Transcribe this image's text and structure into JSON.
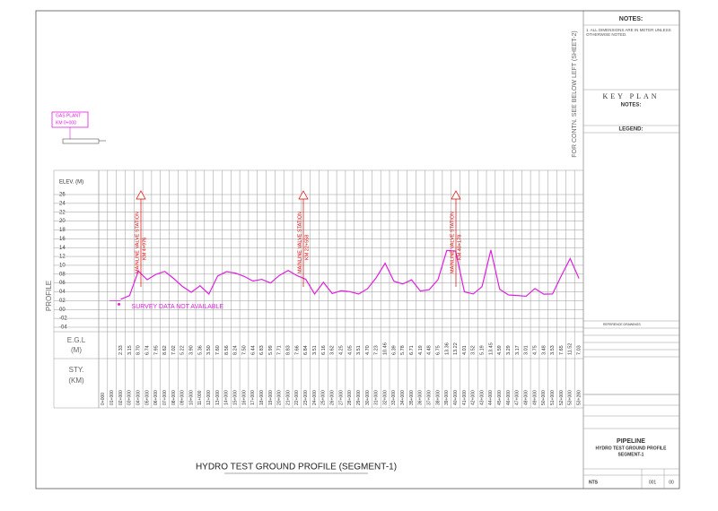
{
  "chart_data": {
    "type": "line",
    "title": "HYDRO TEST GROUND PROFILE (SEGMENT-1)",
    "ylabel": "PROFILE",
    "elev_label": "ELEV. (M)",
    "color": "#e020e0",
    "categories": [
      "0+000",
      "01+000",
      "02+000",
      "03+000",
      "04+000",
      "05+000",
      "06+000",
      "07+000",
      "08+000",
      "09+000",
      "10+000",
      "11+000",
      "12+000",
      "13+000",
      "14+000",
      "15+000",
      "16+000",
      "17+000",
      "18+000",
      "19+000",
      "20+000",
      "21+000",
      "22+000",
      "23+000",
      "24+000",
      "25+000",
      "26+000",
      "27+000",
      "28+000",
      "29+000",
      "30+000",
      "31+000",
      "32+000",
      "33+000",
      "34+000",
      "35+000",
      "36+000",
      "37+000",
      "38+000",
      "39+000",
      "40+000",
      "41+000",
      "42+000",
      "43+000",
      "44+000",
      "45+000",
      "46+000",
      "47+000",
      "48+000",
      "49+000",
      "50+000",
      "51+000",
      "52+000",
      "53+000",
      "53+280"
    ],
    "values": [
      null,
      null,
      2.33,
      3.15,
      8.7,
      6.74,
      7.95,
      8.62,
      7.02,
      5.22,
      3.9,
      5.36,
      3.5,
      7.6,
      8.56,
      8.24,
      7.5,
      6.44,
      6.83,
      5.99,
      7.71,
      8.83,
      7.66,
      6.84,
      3.51,
      6.16,
      3.62,
      4.25,
      4.05,
      3.51,
      4.7,
      7.23,
      10.46,
      6.39,
      5.78,
      6.71,
      4.19,
      4.48,
      6.75,
      13.36,
      13.22,
      4.01,
      3.52,
      5.19,
      13.45,
      4.59,
      3.29,
      3.17,
      3.01,
      4.75,
      3.48,
      3.53,
      7.65,
      11.52,
      7.03
    ],
    "value_labels": [
      null,
      null,
      "2.33",
      "3.15",
      "8.70",
      "6.74",
      "7.95",
      "8.62",
      "7.02",
      "5.22",
      "3.90",
      "5.36",
      "3.50",
      "7.60",
      "8.56",
      "8.24",
      "7.50",
      "6.44",
      "6.83",
      "5.99",
      "7.71",
      "8.83",
      "7.66",
      "6.84",
      "3.51",
      "6.16",
      "3.62",
      "4.25",
      "4.05",
      "3.51",
      "4.70",
      "7.23",
      "10.46",
      "6.39",
      "5.78",
      "6.71",
      "4.19",
      "4.48",
      "6.75",
      "13.36",
      "13.22",
      "4.01",
      "3.52",
      "5.19",
      "13.45",
      "4.59",
      "3.29",
      "3.17",
      "3.01",
      "4.75",
      "3.48",
      "3.53",
      "7.65",
      "11.52",
      "7.03"
    ],
    "ylim": [
      -4,
      26
    ],
    "yticks": [
      {
        "value": -4,
        "label": "-04"
      },
      {
        "value": -2,
        "label": "-02"
      },
      {
        "value": 0,
        "label": "00"
      },
      {
        "value": 2,
        "label": "02"
      },
      {
        "value": 4,
        "label": "04"
      },
      {
        "value": 6,
        "label": "06"
      },
      {
        "value": 8,
        "label": "08"
      },
      10,
      12,
      14,
      16,
      18,
      20,
      22,
      24,
      26
    ],
    "grid": true,
    "egl_label": "E.G.L",
    "egl_unit": "(M)",
    "sty_label": "STY.",
    "sty_unit": "(KM)",
    "gap_note": "SURVEY DATA NOT AVAILABLE",
    "annotations": [
      {
        "text": "MAINLINE VALVE STATION",
        "km": "KM 4+976"
      },
      {
        "text": "MAINLINE VALVE STATION",
        "km": "KM 22+558"
      },
      {
        "text": "MAINLINE VALVE STATION",
        "km": "KM 40+178"
      }
    ]
  },
  "sheet": {
    "gas_plant": "GAS PLANT",
    "gas_plant_km": "KM 0+000",
    "notes_title": "NOTES:",
    "note_1": "1. ALL DIMENSIONS ARE IN METER UNLESS OTHERWISE NOTED.",
    "continuation": "FOR CONTN. SEE BELOW LEFT (SHEET-2)",
    "key_plan": "KEY PLAN",
    "notes_title_2": "NOTES:",
    "legend_title": "LEGEND:",
    "reference": "REFERENCE DRAWINGS",
    "project": "PIPELINE",
    "drawing_title": "HYDRO TEST GROUND PROFILE",
    "segment": "SEGMENT-1",
    "scale": "NTS",
    "sheet_no": "001",
    "rev": "00"
  }
}
